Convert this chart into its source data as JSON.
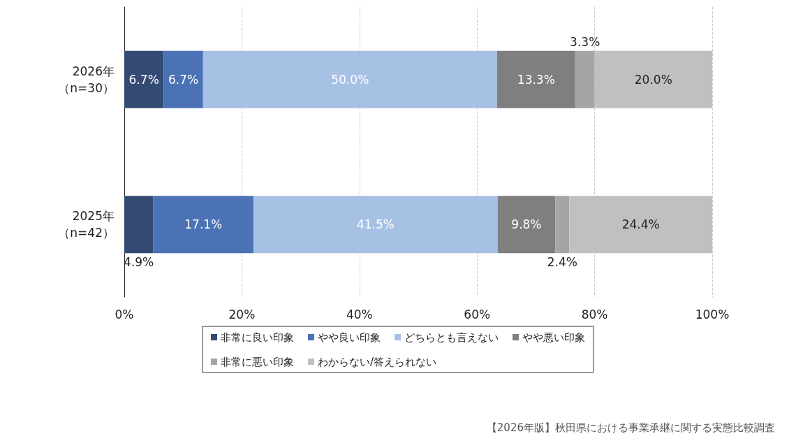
{
  "chart_data": {
    "type": "bar",
    "orientation": "horizontal",
    "stacked": true,
    "categories": [
      "2026年（n=30）",
      "2025年（n=42）"
    ],
    "series": [
      {
        "name": "非常に良い印象",
        "color": "#334a73",
        "values": [
          6.7,
          4.9
        ],
        "value_labels": [
          "6.7%",
          "4.9%"
        ]
      },
      {
        "name": "やや良い印象",
        "color": "#4a72b5",
        "values": [
          6.7,
          17.1
        ],
        "value_labels": [
          "6.7%",
          "17.1%"
        ]
      },
      {
        "name": "どちらとも言えない",
        "color": "#a7c1e5",
        "values": [
          50.0,
          41.5
        ],
        "value_labels": [
          "50.0%",
          "41.5%"
        ]
      },
      {
        "name": "やや悪い印象",
        "color": "#7f7f7f",
        "values": [
          13.3,
          9.8
        ],
        "value_labels": [
          "13.3%",
          "9.8%"
        ]
      },
      {
        "name": "非常に悪い印象",
        "color": "#a5a5a5",
        "values": [
          3.3,
          2.4
        ],
        "value_labels": [
          "3.3%",
          "2.4%"
        ]
      },
      {
        "name": "わからない/答えられない",
        "color": "#c0c0c0",
        "values": [
          20.0,
          24.4
        ],
        "value_labels": [
          "20.0%",
          "24.4%"
        ]
      }
    ],
    "xlim": [
      0,
      100
    ],
    "xticks": [
      {
        "value": 0,
        "label": "0%"
      },
      {
        "value": 20,
        "label": "20%"
      },
      {
        "value": 40,
        "label": "40%"
      },
      {
        "value": 60,
        "label": "60%"
      },
      {
        "value": 80,
        "label": "80%"
      },
      {
        "value": 100,
        "label": "100%"
      }
    ],
    "grid": "x",
    "legend": "bottom",
    "annotations": [
      "【2026年版】秋田県における事業承継に関する実態比較調査"
    ]
  }
}
